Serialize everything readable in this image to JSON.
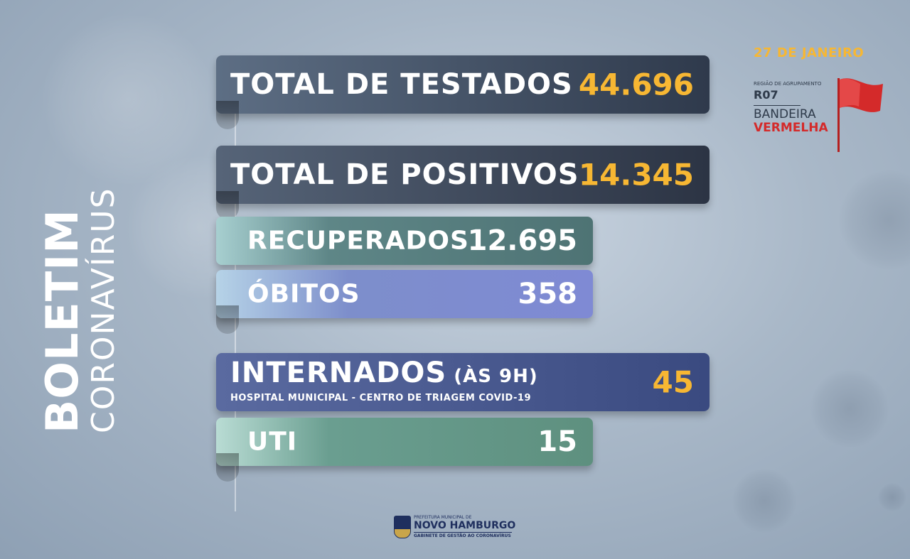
{
  "title": {
    "line1": "BOLETIM",
    "line2": "CORONAVÍRUS"
  },
  "stats": {
    "testados": {
      "label": "TOTAL DE TESTADOS",
      "value": "44.696"
    },
    "positivos": {
      "label": "TOTAL DE POSITIVOS",
      "value": "14.345"
    },
    "recuperados": {
      "label": "RECUPERADOS",
      "value": "12.695"
    },
    "obitos": {
      "label": "ÓBITOS",
      "value": "358"
    },
    "internados": {
      "label": "INTERNADOS",
      "suffix": "(ÀS 9H)",
      "sublabel": "HOSPITAL MUNICIPAL - CENTRO DE TRIAGEM COVID-19",
      "value": "45"
    },
    "uti": {
      "label": "UTI",
      "value": "15"
    }
  },
  "corner": {
    "date": "27 DE JANEIRO",
    "region_label": "REGIÃO DE AGRUPAMENTO",
    "region_code": "R07",
    "flag_word": "BANDEIRA",
    "flag_color_word": "VERMELHA",
    "flag_color": "#d42a2a"
  },
  "footer": {
    "small": "PREFEITURA MUNICIPAL DE",
    "name": "NOVO HAMBURGO",
    "tag": "GABINETE DE GESTÃO AO CORONAVÍRUS"
  },
  "colors": {
    "accent_yellow": "#f7b733"
  }
}
